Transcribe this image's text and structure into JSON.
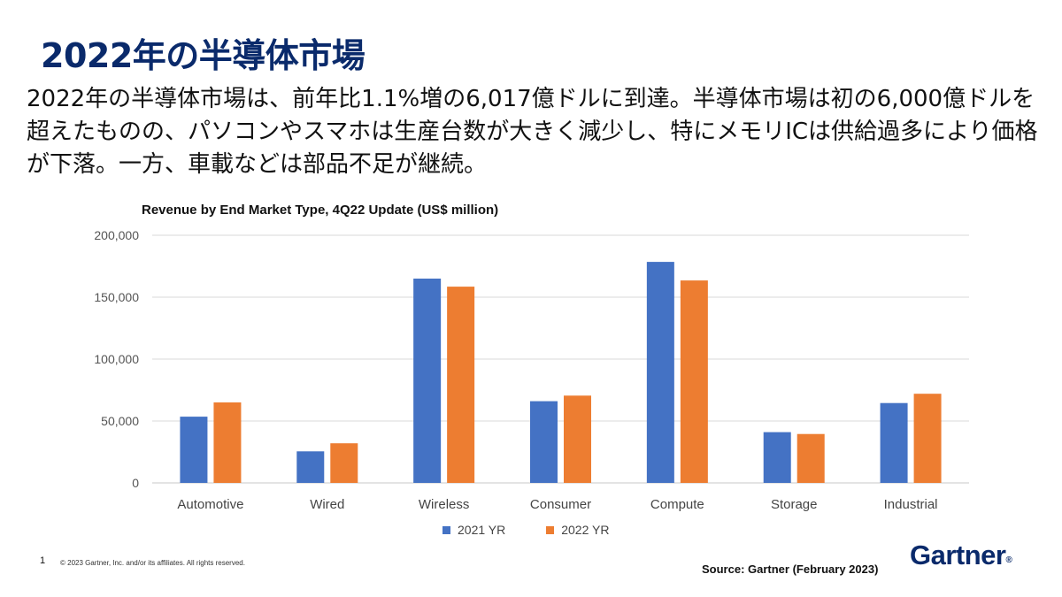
{
  "slide": {
    "title": "2022年の半導体市場",
    "body": "2022年の半導体市場は、前年比1.1%増の6,017億ドルに到達。半導体市場は初の6,000億ドルを超えたものの、パソコンやスマホは生産台数が大きく減少し、特にメモリICは供給過多により価格が下落。一方、車載などは部品不足が継続。"
  },
  "chart_data": {
    "type": "bar",
    "title": "Revenue by End Market Type, 4Q22 Update (US$ million)",
    "categories": [
      "Automotive",
      "Wired",
      "Wireless",
      "Consumer",
      "Compute",
      "Storage",
      "Industrial"
    ],
    "series": [
      {
        "name": "2021 YR",
        "color": "#4472c4",
        "values": [
          53500,
          25500,
          165000,
          66000,
          178500,
          41000,
          64500
        ]
      },
      {
        "name": "2022 YR",
        "color": "#ed7d31",
        "values": [
          65000,
          32000,
          158500,
          70500,
          163500,
          39500,
          72000
        ]
      }
    ],
    "y_ticks": [
      "0",
      "50,000",
      "100,000",
      "150,000",
      "200,000"
    ],
    "ylim": [
      0,
      200000
    ],
    "grid": true,
    "legend_position": "bottom"
  },
  "footer": {
    "page_number": "1",
    "copyright": "© 2023 Gartner, Inc. and/or its affiliates. All rights reserved.",
    "source": "Source: Gartner (February 2023)",
    "brand": "Gartner",
    "brand_mark": "®"
  }
}
